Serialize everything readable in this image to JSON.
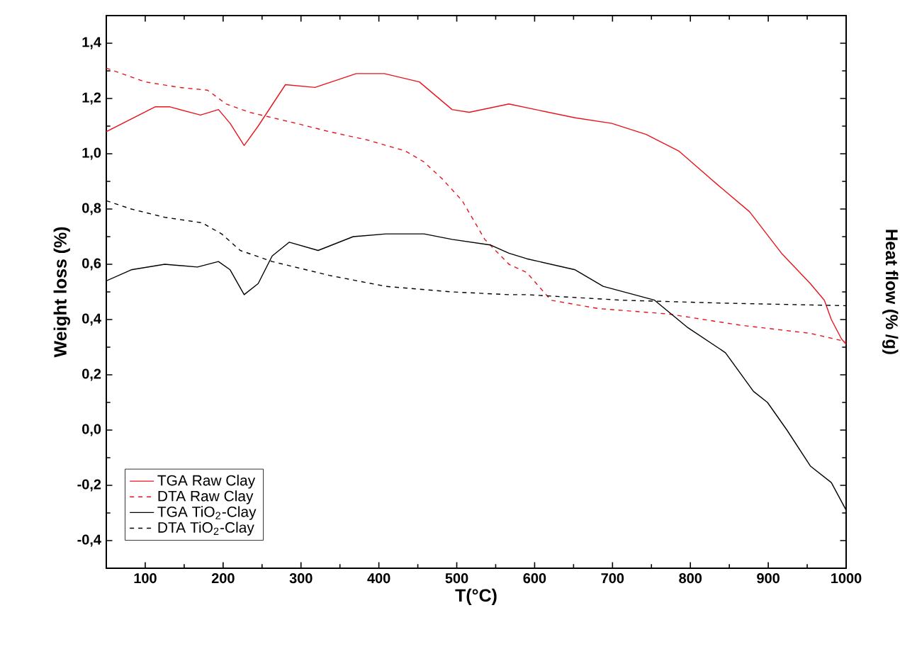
{
  "chart_data": {
    "type": "line",
    "xlabel": "T(°C)",
    "ylabel": "Weight loss (%)",
    "y2label": "Heat flow (% /g)",
    "xlim": [
      50,
      1000
    ],
    "xticks": [
      100,
      200,
      300,
      400,
      500,
      600,
      700,
      800,
      900,
      1000
    ],
    "ylim": [
      -0.5,
      1.5
    ],
    "yticks": [
      {
        "value": -0.4,
        "label": "-0,4"
      },
      {
        "value": -0.2,
        "label": "-0,2"
      },
      {
        "value": 0.0,
        "label": "0,0"
      },
      {
        "value": 0.2,
        "label": "0,2"
      },
      {
        "value": 0.4,
        "label": "0,4"
      },
      {
        "value": 0.6,
        "label": "0,6"
      },
      {
        "value": 0.8,
        "label": "0,8"
      },
      {
        "value": 1.0,
        "label": "1,0"
      },
      {
        "value": 1.2,
        "label": "1,2"
      },
      {
        "value": 1.4,
        "label": "1,4"
      }
    ],
    "legend": "bottom left",
    "grid": false,
    "marker": "none",
    "series": [
      {
        "name": "TGA Raw Clay",
        "color": "#e8141c",
        "line_style": "solid",
        "x": [
          50,
          113,
          131,
          171,
          194,
          209,
          227,
          245,
          280,
          318,
          371,
          407,
          452,
          494,
          516,
          567,
          652,
          699,
          743,
          785,
          834,
          876,
          917,
          954,
          972,
          981,
          994,
          1000
        ],
        "values": [
          1.08,
          1.17,
          1.17,
          1.14,
          1.16,
          1.11,
          1.03,
          1.1,
          1.25,
          1.24,
          1.29,
          1.29,
          1.26,
          1.16,
          1.15,
          1.18,
          1.13,
          1.11,
          1.07,
          1.01,
          0.89,
          0.79,
          0.64,
          0.53,
          0.47,
          0.4,
          0.33,
          0.31
        ]
      },
      {
        "name": "DTA Raw Clay",
        "color": "#e8141c",
        "line_style": "dashed",
        "x": [
          50,
          100,
          144,
          180,
          204,
          234,
          294,
          336,
          385,
          434,
          458,
          481,
          507,
          536,
          567,
          590,
          621,
          681,
          772,
          863,
          954,
          1000
        ],
        "values": [
          1.31,
          1.26,
          1.24,
          1.23,
          1.18,
          1.15,
          1.11,
          1.08,
          1.05,
          1.01,
          0.97,
          0.91,
          0.83,
          0.69,
          0.6,
          0.57,
          0.47,
          0.44,
          0.42,
          0.38,
          0.35,
          0.32
        ]
      },
      {
        "name": "TGA TiO$_{2}$-Clay",
        "color": "#000000",
        "line_style": "solid",
        "x": [
          50,
          82,
          125,
          167,
          194,
          209,
          227,
          245,
          263,
          285,
          322,
          367,
          409,
          458,
          494,
          543,
          567,
          590,
          652,
          688,
          754,
          797,
          845,
          881,
          899,
          924,
          954,
          981,
          1000
        ],
        "values": [
          0.54,
          0.58,
          0.6,
          0.59,
          0.61,
          0.58,
          0.49,
          0.53,
          0.63,
          0.68,
          0.65,
          0.7,
          0.71,
          0.71,
          0.69,
          0.67,
          0.64,
          0.62,
          0.58,
          0.52,
          0.47,
          0.37,
          0.28,
          0.14,
          0.1,
          0.0,
          -0.13,
          -0.19,
          -0.29
        ]
      },
      {
        "name": "DTA TiO$_{2}$-Clay",
        "color": "#000000",
        "line_style": "dashed",
        "x": [
          50,
          82,
          125,
          173,
          198,
          222,
          263,
          336,
          409,
          494,
          567,
          590,
          712,
          834,
          1000
        ],
        "values": [
          0.83,
          0.8,
          0.77,
          0.75,
          0.71,
          0.65,
          0.61,
          0.56,
          0.52,
          0.5,
          0.49,
          0.49,
          0.47,
          0.46,
          0.45
        ]
      }
    ]
  }
}
